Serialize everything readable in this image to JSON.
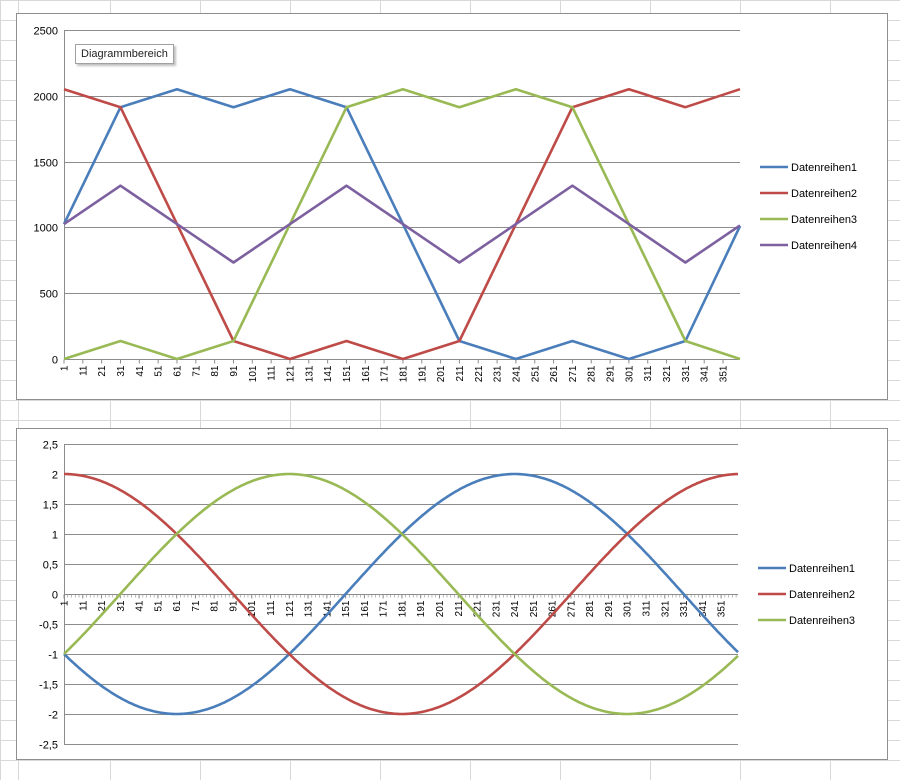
{
  "chart_data": [
    {
      "type": "line",
      "tooltip": "Diagrammbereich",
      "ylim": [
        0,
        2500
      ],
      "y_ticks": [
        "0",
        "500",
        "1000",
        "1500",
        "2000",
        "2500"
      ],
      "x_count": 360,
      "x_tick_start": 1,
      "x_tick_step": 10,
      "grid": true,
      "legend_position": "right",
      "series": [
        {
          "name": "Datenreihen1",
          "color": "#4a7ebb",
          "x": [
            1,
            31,
            61,
            91,
            121,
            151,
            181,
            211,
            241,
            271,
            301,
            331,
            360
          ],
          "values": [
            1025,
            1913,
            2050,
            1913,
            2050,
            1913,
            1025,
            137,
            0,
            137,
            0,
            137,
            1010
          ]
        },
        {
          "name": "Datenreihen2",
          "color": "#be4b48",
          "x": [
            1,
            31,
            61,
            91,
            121,
            151,
            181,
            211,
            241,
            271,
            301,
            331,
            360
          ],
          "values": [
            2050,
            1913,
            1025,
            137,
            0,
            137,
            0,
            137,
            1025,
            1913,
            2050,
            1913,
            2050
          ]
        },
        {
          "name": "Datenreihen3",
          "color": "#98b954",
          "x": [
            1,
            31,
            61,
            91,
            121,
            151,
            181,
            211,
            241,
            271,
            301,
            331,
            360
          ],
          "values": [
            0,
            137,
            0,
            137,
            1025,
            1913,
            2050,
            1913,
            2050,
            1913,
            1025,
            137,
            0
          ]
        },
        {
          "name": "Datenreihen4",
          "color": "#7d60a0",
          "x": [
            1,
            31,
            61,
            91,
            121,
            151,
            181,
            211,
            241,
            271,
            301,
            331,
            360
          ],
          "values": [
            1025,
            1317,
            1025,
            733,
            1025,
            1317,
            1025,
            733,
            1025,
            1317,
            1025,
            733,
            1015
          ]
        }
      ]
    },
    {
      "type": "line",
      "ylim": [
        -2.5,
        2.5
      ],
      "y_ticks": [
        "-2,5",
        "-2",
        "-1,5",
        "-1",
        "-0,5",
        "0",
        "0,5",
        "1",
        "1,5",
        "2",
        "2,5"
      ],
      "x_count": 360,
      "x_tick_start": 1,
      "x_tick_step": 10,
      "grid": true,
      "legend_position": "right",
      "series": [
        {
          "name": "Datenreihen1",
          "color": "#4a7ebb",
          "amplitude": 2,
          "phase_deg": 210
        },
        {
          "name": "Datenreihen2",
          "color": "#be4b48",
          "amplitude": 2,
          "phase_deg": 90
        },
        {
          "name": "Datenreihen3",
          "color": "#98b954",
          "amplitude": 2,
          "phase_deg": 330
        }
      ]
    }
  ]
}
